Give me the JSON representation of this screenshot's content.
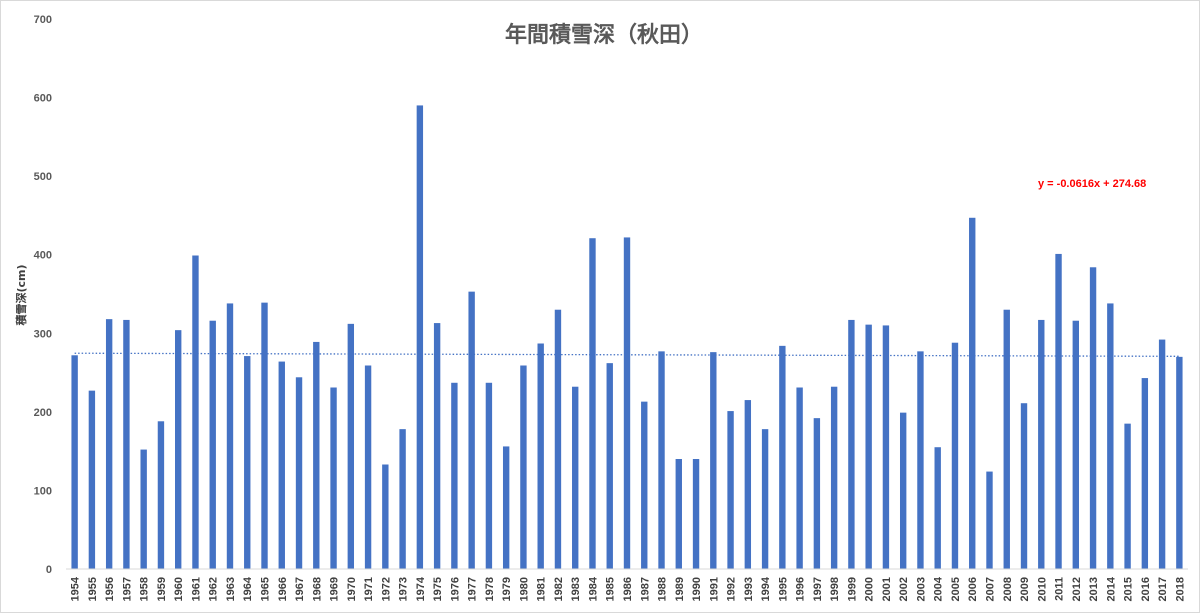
{
  "chart_data": {
    "type": "bar",
    "title": "年間積雪深（秋田）",
    "ylabel": "積雪深(cm)",
    "xlabel": "",
    "ylim": [
      0,
      700
    ],
    "yticks": [
      0,
      100,
      200,
      300,
      400,
      500,
      600,
      700
    ],
    "grid": false,
    "legend": "none",
    "categories": [
      "1954",
      "1955",
      "1956",
      "1957",
      "1958",
      "1959",
      "1960",
      "1961",
      "1962",
      "1963",
      "1964",
      "1965",
      "1966",
      "1967",
      "1968",
      "1969",
      "1970",
      "1971",
      "1972",
      "1973",
      "1974",
      "1975",
      "1976",
      "1977",
      "1978",
      "1979",
      "1980",
      "1981",
      "1982",
      "1983",
      "1984",
      "1985",
      "1986",
      "1987",
      "1988",
      "1989",
      "1990",
      "1991",
      "1992",
      "1993",
      "1994",
      "1995",
      "1996",
      "1997",
      "1998",
      "1999",
      "2000",
      "2001",
      "2002",
      "2003",
      "2004",
      "2005",
      "2006",
      "2007",
      "2008",
      "2009",
      "2010",
      "2011",
      "2012",
      "2013",
      "2014",
      "2015",
      "2016",
      "2017",
      "2018"
    ],
    "values": [
      272,
      227,
      318,
      317,
      152,
      188,
      304,
      399,
      316,
      338,
      271,
      339,
      264,
      244,
      289,
      231,
      312,
      259,
      133,
      178,
      590,
      313,
      237,
      353,
      237,
      156,
      259,
      287,
      330,
      232,
      421,
      262,
      422,
      213,
      277,
      140,
      140,
      276,
      201,
      215,
      178,
      284,
      231,
      192,
      232,
      317,
      311,
      310,
      199,
      277,
      155,
      288,
      447,
      124,
      330,
      211,
      317,
      401,
      316,
      384,
      338,
      185,
      243,
      292,
      270
    ],
    "bar_color": "#4472c4",
    "trendline": {
      "type": "linear",
      "slope": -0.0616,
      "intercept": 274.68,
      "color": "#4472c4",
      "style": "dotted",
      "label": "y = -0.0616x + 274.68",
      "label_color": "#ff0000"
    }
  }
}
